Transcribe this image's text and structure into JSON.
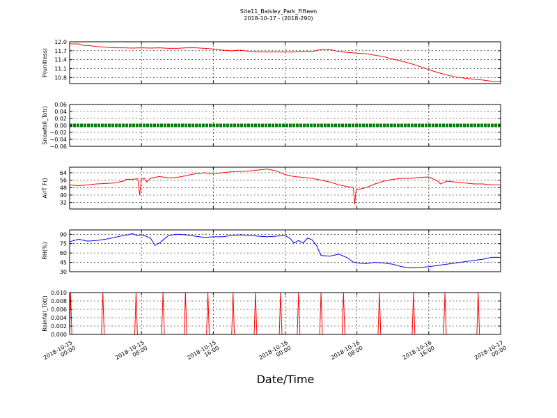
{
  "figure": {
    "title_line1": "Site11_Baisley_Park_Fifteen",
    "title_line2": "2018-10-17 - (2018-290)",
    "xlabel": "Date/Time",
    "x_tick_labels": [
      [
        "2018-10-15",
        "00:00"
      ],
      [
        "2018-10-15",
        "08:00"
      ],
      [
        "2018-10-15",
        "16:00"
      ],
      [
        "2018-10-16",
        "00:00"
      ],
      [
        "2018-10-16",
        "08:00"
      ],
      [
        "2018-10-16",
        "16:00"
      ],
      [
        "2018-10-17",
        "00:00"
      ]
    ]
  },
  "chart_data": [
    {
      "type": "line",
      "ylabel": "P(unitless)",
      "color": "#ff0000",
      "ylim": [
        10.6,
        12.0
      ],
      "yticks": [
        10.8,
        11.1,
        11.4,
        11.7,
        12.0
      ],
      "ytick_labels": [
        "10.8",
        "11.1",
        "11.4",
        "11.7",
        "12.0"
      ],
      "xlim": [
        0,
        48
      ],
      "grid": true,
      "x": [
        0,
        1,
        1.5,
        2,
        3,
        4,
        5,
        6,
        7,
        8,
        9,
        10,
        11,
        12,
        13,
        14,
        15,
        16,
        17,
        18,
        19,
        20,
        21,
        22,
        23,
        24,
        25,
        26,
        27,
        28,
        29,
        30,
        31,
        32,
        33,
        34,
        35,
        36,
        37,
        38,
        39,
        40,
        41,
        42,
        43,
        44,
        45,
        46,
        47,
        47.5,
        48
      ],
      "y": [
        11.93,
        11.93,
        11.88,
        11.88,
        11.84,
        11.82,
        11.8,
        11.8,
        11.79,
        11.8,
        11.79,
        11.8,
        11.78,
        11.78,
        11.8,
        11.8,
        11.78,
        11.76,
        11.72,
        11.7,
        11.72,
        11.68,
        11.66,
        11.66,
        11.66,
        11.66,
        11.66,
        11.68,
        11.67,
        11.74,
        11.74,
        11.67,
        11.64,
        11.62,
        11.6,
        11.55,
        11.5,
        11.42,
        11.35,
        11.27,
        11.17,
        11.07,
        10.97,
        10.89,
        10.82,
        10.78,
        10.75,
        10.72,
        10.68,
        10.66,
        10.68
      ]
    },
    {
      "type": "line",
      "ylabel": "Snowfall_Tot()",
      "color": "#008000",
      "ylim": [
        -0.06,
        0.06
      ],
      "yticks": [
        -0.06,
        -0.04,
        -0.02,
        0.0,
        0.02,
        0.04,
        0.06
      ],
      "ytick_labels": [
        "−0.06",
        "−0.04",
        "−0.02",
        "0.00",
        "0.02",
        "0.04",
        "0.06"
      ],
      "xlim": [
        0,
        48
      ],
      "grid": true,
      "markers": true,
      "x": [
        0,
        48
      ],
      "y": [
        0,
        0
      ]
    },
    {
      "type": "line",
      "ylabel": "AirT F()",
      "color": "#ff0000",
      "ylim": [
        25,
        70
      ],
      "yticks": [
        32,
        40,
        48,
        56,
        64
      ],
      "ytick_labels": [
        "32",
        "40",
        "48",
        "56",
        "64"
      ],
      "xlim": [
        0,
        48
      ],
      "grid": true,
      "x": [
        0,
        1,
        2,
        3,
        4,
        5,
        6,
        6.3,
        7,
        7.6,
        7.8,
        8,
        8.3,
        8.6,
        9,
        9.5,
        10,
        11,
        12,
        13,
        14,
        15,
        16,
        17,
        18,
        19,
        20,
        21,
        22,
        23,
        24,
        25,
        26,
        27,
        28,
        29,
        30,
        31,
        31.6,
        31.75,
        31.9,
        32.1,
        33,
        34,
        35,
        36,
        37,
        38,
        39,
        40,
        41,
        41.3,
        42,
        43,
        44,
        45,
        46,
        47,
        48
      ],
      "y": [
        51,
        50,
        51,
        52,
        52.5,
        53,
        55,
        57,
        57,
        57.5,
        40,
        57,
        58,
        54,
        58,
        59,
        60,
        58.5,
        59,
        61,
        63,
        64,
        63,
        64,
        65,
        65.5,
        66,
        67,
        68,
        66,
        62,
        60,
        59,
        58,
        56,
        54,
        51,
        49,
        48,
        30,
        45,
        46,
        48,
        52,
        55,
        57,
        58,
        58,
        59,
        59.5,
        55,
        52,
        55,
        54,
        53,
        52,
        52,
        51,
        51
      ]
    },
    {
      "type": "line",
      "ylabel": "RH(%)",
      "color": "#0000ff",
      "ylim": [
        30,
        97
      ],
      "yticks": [
        30,
        45,
        60,
        75,
        90
      ],
      "ytick_labels": [
        "30",
        "45",
        "60",
        "75",
        "90"
      ],
      "xlim": [
        0,
        48
      ],
      "grid": true,
      "x": [
        0,
        1,
        2,
        3,
        4,
        5,
        6,
        6.5,
        7,
        7.5,
        8,
        8.5,
        9,
        9.5,
        10,
        11,
        12,
        13,
        14,
        15,
        16,
        17,
        18,
        19,
        20,
        21,
        22,
        23,
        24,
        24.5,
        25,
        25.5,
        26,
        26.5,
        27,
        27.5,
        28,
        29,
        30,
        31,
        31.5,
        32,
        33,
        34,
        35,
        36,
        37,
        38,
        39,
        40,
        41,
        42,
        43,
        44,
        45,
        46,
        47,
        48
      ],
      "y": [
        78,
        82,
        79,
        80,
        82,
        85,
        88,
        89,
        91,
        88,
        89,
        87,
        84,
        72,
        76,
        88,
        90,
        89,
        87,
        85,
        86,
        86,
        88,
        89,
        88,
        87,
        86,
        87,
        88,
        84,
        76,
        80,
        76,
        84,
        81,
        72,
        56,
        55,
        58,
        52,
        46,
        44,
        43,
        45,
        44,
        42,
        38,
        36,
        37,
        38,
        40,
        42,
        44,
        46,
        48,
        50,
        53,
        53
      ]
    },
    {
      "type": "line",
      "ylabel": "Rainfall_Tot()",
      "color": "#ff0000",
      "ylim": [
        0,
        0.01
      ],
      "yticks": [
        0.0,
        0.002,
        0.004,
        0.006,
        0.008,
        0.01
      ],
      "ytick_labels": [
        "0.000",
        "0.002",
        "0.004",
        "0.006",
        "0.008",
        "0.010"
      ],
      "xlim": [
        0,
        48
      ],
      "grid": true,
      "spike_width": 0.3,
      "spikes_at": [
        0.1,
        3.7,
        7.4,
        10.4,
        12.9,
        15.4,
        18.2,
        20.7,
        23.5,
        25.5,
        28,
        30.5,
        34.5,
        38.3,
        41.8,
        45.5
      ],
      "spike_value": 0.01
    }
  ]
}
